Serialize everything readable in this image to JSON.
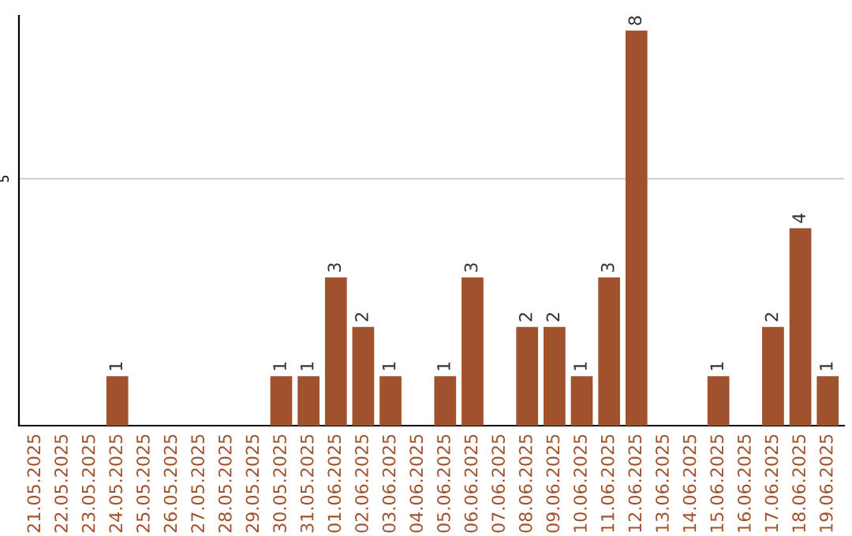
{
  "chart_data": {
    "type": "bar",
    "categories": [
      "21.05.2025",
      "22.05.2025",
      "23.05.2025",
      "24.05.2025",
      "25.05.2025",
      "26.05.2025",
      "27.05.2025",
      "28.05.2025",
      "29.05.2025",
      "30.05.2025",
      "31.05.2025",
      "01.06.2025",
      "02.06.2025",
      "03.06.2025",
      "04.06.2025",
      "05.06.2025",
      "06.06.2025",
      "07.06.2025",
      "08.06.2025",
      "09.06.2025",
      "10.06.2025",
      "11.06.2025",
      "12.06.2025",
      "13.06.2025",
      "14.06.2025",
      "15.06.2025",
      "16.06.2025",
      "17.06.2025",
      "18.06.2025",
      "19.06.2025"
    ],
    "values": [
      0,
      0,
      0,
      1,
      0,
      0,
      0,
      0,
      0,
      1,
      1,
      3,
      2,
      1,
      0,
      1,
      3,
      0,
      2,
      2,
      1,
      3,
      8,
      0,
      0,
      1,
      0,
      2,
      4,
      1
    ],
    "value_labels": [
      null,
      null,
      null,
      "1",
      null,
      null,
      null,
      null,
      null,
      "1",
      "1",
      "3",
      "2",
      "1",
      null,
      "1",
      "3",
      null,
      "2",
      "2",
      "1",
      "3",
      "8",
      null,
      null,
      "1",
      null,
      "2",
      "4",
      "1"
    ],
    "color": "#a0522d",
    "ylim": [
      0,
      8.3
    ],
    "yticks": [
      5
    ],
    "grid": "y"
  }
}
